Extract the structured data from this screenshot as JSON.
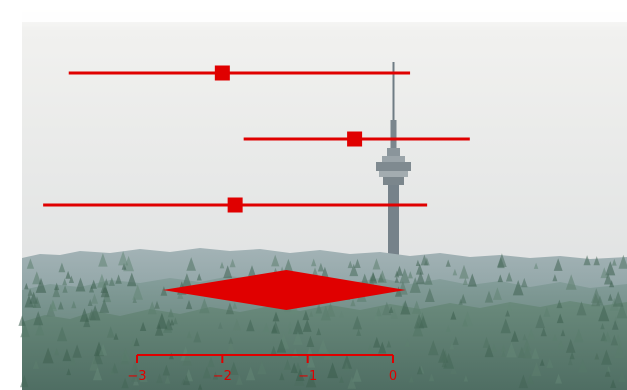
{
  "colors": {
    "mark": "#e00000",
    "sky_top": "#f4f4f2",
    "sky_bottom": "#dcdfe0",
    "forest_far": "#9fb0b3",
    "forest_mid": "#7f9895",
    "forest_near": "#5d7b70",
    "tower": "#7d8990"
  },
  "background": {
    "description_icon": "tv-tower-forest-photo-icon"
  },
  "chart_data": {
    "type": "forest",
    "xlim": [
      -3.0,
      0.0
    ],
    "xticks": [
      -3,
      -2,
      -1,
      0
    ],
    "xtick_labels": [
      "−3",
      "−2",
      "−1",
      "0"
    ],
    "rows": [
      {
        "estimate": -2.0,
        "lower": -3.8,
        "upper": 0.2
      },
      {
        "estimate": -0.45,
        "lower": -1.75,
        "upper": 0.9
      },
      {
        "estimate": -1.85,
        "lower": -4.1,
        "upper": 0.4
      }
    ],
    "summary": {
      "estimate": -1.25,
      "lower": -2.7,
      "upper": 0.15
    },
    "title": "",
    "xlabel": "",
    "ylabel": "",
    "grid": false,
    "legend": false
  }
}
